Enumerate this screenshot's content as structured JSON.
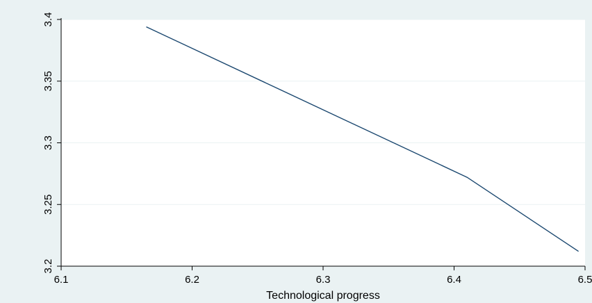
{
  "chart_data": {
    "type": "line",
    "title": "",
    "xlabel": "Technological progress",
    "ylabel": "",
    "xlim": [
      6.1,
      6.5
    ],
    "ylim": [
      3.2,
      3.4
    ],
    "xticks": [
      6.1,
      6.2,
      6.3,
      6.4,
      6.5
    ],
    "xtick_labels": [
      "6.1",
      "6.2",
      "6.3",
      "6.4",
      "6.5"
    ],
    "yticks": [
      3.2,
      3.25,
      3.3,
      3.35,
      3.4
    ],
    "ytick_labels": [
      "3.2",
      "3.25",
      "3.3",
      "3.35",
      "3.4"
    ],
    "grid": "horizontal",
    "series": [
      {
        "x": [
          6.165,
          6.41,
          6.495
        ],
        "y": [
          3.394,
          3.272,
          3.212
        ],
        "color": "#1a476f"
      }
    ]
  },
  "colors": {
    "background": "#eaf2f3",
    "plot_area": "#ffffff",
    "gridline": "#eaf2f3",
    "axis": "#000000"
  }
}
